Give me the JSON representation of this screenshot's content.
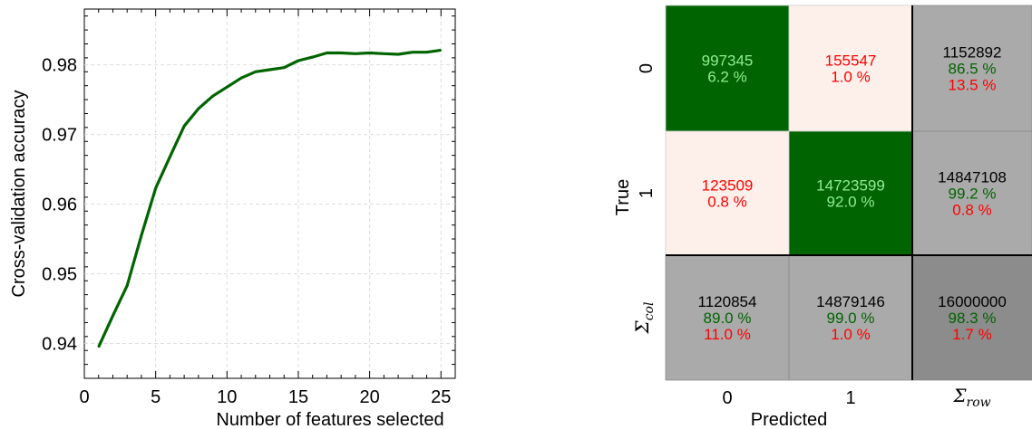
{
  "chart_data": [
    {
      "type": "line",
      "title": "",
      "xlabel": "Number of features selected",
      "ylabel": "Cross-validation accuracy",
      "xlim": [
        0,
        26
      ],
      "ylim": [
        0.935,
        0.988
      ],
      "xticks": [
        0,
        5,
        10,
        15,
        20,
        25
      ],
      "yticks": [
        0.94,
        0.95,
        0.96,
        0.97,
        0.98
      ],
      "ytick_labels": [
        "0.94",
        "0.95",
        "0.96",
        "0.97",
        "0.98"
      ],
      "grid": true,
      "line_color": "#006400",
      "series": [
        {
          "x": [
            1,
            2,
            3,
            4,
            5,
            6,
            7,
            8,
            9,
            10,
            11,
            12,
            13,
            14,
            15,
            16,
            17,
            18,
            19,
            20,
            21,
            22,
            23,
            24,
            25
          ],
          "values": [
            0.9395,
            0.944,
            0.9483,
            0.9555,
            0.9623,
            0.9668,
            0.9712,
            0.9737,
            0.9755,
            0.9768,
            0.9781,
            0.979,
            0.9793,
            0.9796,
            0.9806,
            0.9811,
            0.9817,
            0.9817,
            0.9816,
            0.9817,
            0.9816,
            0.9815,
            0.9818,
            0.9818,
            0.9821
          ]
        }
      ]
    },
    {
      "type": "heatmap",
      "title": "",
      "xlabel": "Predicted",
      "ylabel": "True",
      "col_labels": [
        "0",
        "1",
        "Σrow"
      ],
      "row_labels": [
        "0",
        "1",
        "Σcol"
      ],
      "sigma_base": "Σ",
      "sigma_row_sub": "row",
      "sigma_col_sub": "col",
      "colors": {
        "diag": "#006400",
        "offdiag": "#fdf0ea",
        "total": "#aaaaaa",
        "grand_total": "#8c8c8c",
        "diag_text": "#90ee90",
        "error_text": "#ff0000",
        "correct_text": "#006400"
      },
      "cells": [
        [
          {
            "kind": "diag",
            "lines": [
              "997345",
              "6.2 %"
            ]
          },
          {
            "kind": "offdiag",
            "lines": [
              "155547",
              "1.0 %"
            ]
          },
          {
            "kind": "total",
            "lines": [
              "1152892",
              "86.5 %",
              "13.5 %"
            ]
          }
        ],
        [
          {
            "kind": "offdiag",
            "lines": [
              "123509",
              "0.8 %"
            ]
          },
          {
            "kind": "diag",
            "lines": [
              "14723599",
              "92.0 %"
            ]
          },
          {
            "kind": "total",
            "lines": [
              "14847108",
              "99.2 %",
              "0.8 %"
            ]
          }
        ],
        [
          {
            "kind": "total",
            "lines": [
              "1120854",
              "89.0 %",
              "11.0 %"
            ]
          },
          {
            "kind": "total",
            "lines": [
              "14879146",
              "99.0 %",
              "1.0 %"
            ]
          },
          {
            "kind": "grand_total",
            "lines": [
              "16000000",
              "98.3 %",
              "1.7 %"
            ]
          }
        ]
      ]
    }
  ]
}
